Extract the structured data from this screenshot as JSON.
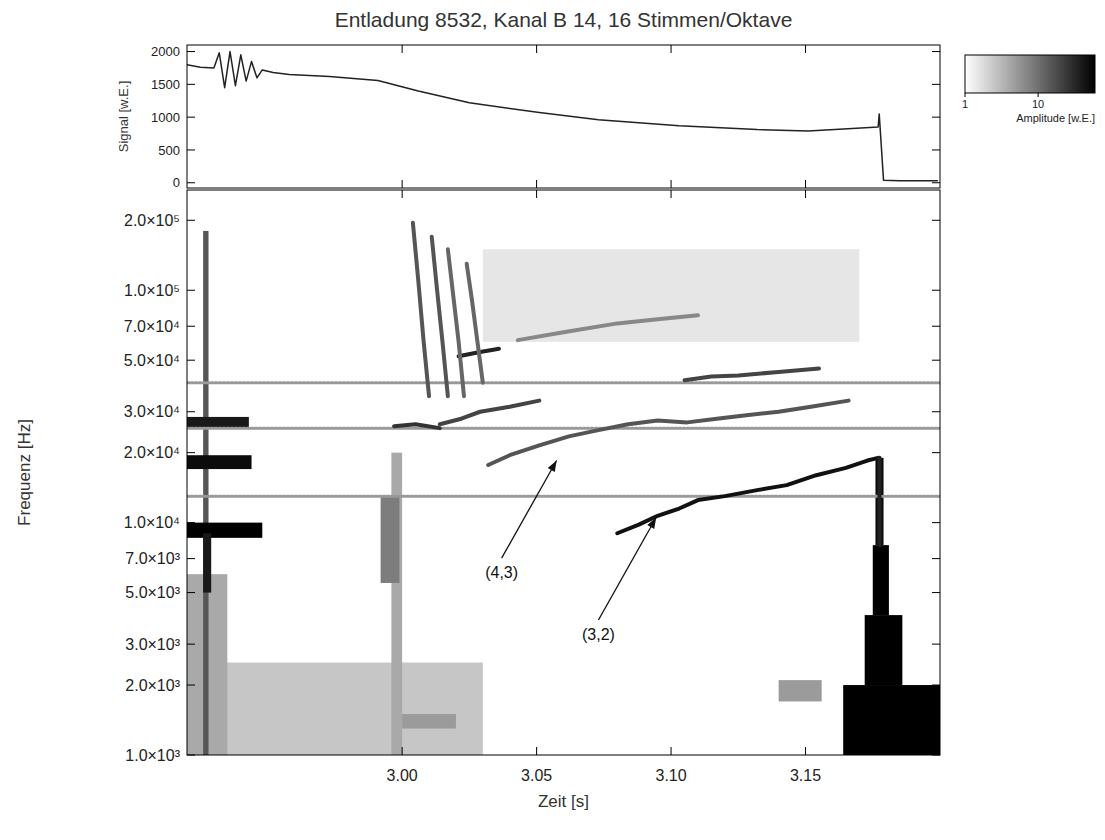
{
  "chart_data": [
    {
      "type": "line",
      "title": "Entladung 8532, Kanal B 14, 16 Stimmen/Oktave",
      "ylabel": "Signal [w.E.]",
      "xlim": [
        2.92,
        3.2
      ],
      "xticks": [
        {
          "value": 3,
          "label": "3.00"
        },
        3.05,
        {
          "value": 3.1,
          "label": "3.10"
        },
        3.15
      ],
      "ylim": [
        -80,
        2100
      ],
      "yticks": [
        0,
        500,
        1000,
        1500,
        2000
      ],
      "tick_labels": "y",
      "x": [
        2.92,
        2.925,
        2.93,
        2.932,
        2.934,
        2.936,
        2.938,
        2.94,
        2.942,
        2.944,
        2.946,
        2.948,
        2.952,
        2.958,
        2.973,
        2.991,
        3.006,
        3.025,
        3.051,
        3.073,
        3.103,
        3.132,
        3.151,
        3.169,
        3.177,
        3.1774,
        3.179,
        3.185,
        3.199
      ],
      "series": [
        {
          "color": "#222222",
          "values": [
            1800,
            1760,
            1750,
            1980,
            1450,
            2000,
            1480,
            1950,
            1550,
            1850,
            1600,
            1720,
            1680,
            1650,
            1620,
            1560,
            1400,
            1220,
            1070,
            960,
            870,
            810,
            790,
            830,
            850,
            1050,
            40,
            30,
            30
          ]
        }
      ]
    },
    {
      "type": "spectrogram",
      "xlabel": "Zeit [s]",
      "ylabel": "Frequenz [Hz]",
      "log": "y",
      "xlim": [
        2.92,
        3.2
      ],
      "xticks": [
        {
          "value": 3,
          "label": "3.00"
        },
        3.05,
        {
          "value": 3.1,
          "label": "3.10"
        },
        3.15
      ],
      "ylim": [
        1000,
        270000
      ],
      "yticks": [
        {
          "value": 1000,
          "label": "1.0×10³"
        },
        {
          "value": 2000,
          "label": "2.0×10³"
        },
        {
          "value": 3000,
          "label": "3.0×10³"
        },
        {
          "value": 5000,
          "label": "5.0×10³"
        },
        {
          "value": 7000,
          "label": "7.0×10³"
        },
        {
          "value": 10000,
          "label": "1.0×10⁴"
        },
        {
          "value": 20000,
          "label": "2.0×10⁴"
        },
        {
          "value": 30000,
          "label": "3.0×10⁴"
        },
        {
          "value": 50000,
          "label": "5.0×10⁴"
        },
        {
          "value": 70000,
          "label": "7.0×10⁴"
        },
        {
          "value": 100000,
          "label": "1.0×10⁵"
        },
        {
          "value": 200000,
          "label": "2.0×10⁵"
        }
      ],
      "colorbar": {
        "range": [
          1,
          60
        ],
        "ticks": [
          1,
          10
        ],
        "label": "Amplitude [w.E.]",
        "log": true
      },
      "cells": [
        {
          "x": [
            2.92,
            3.03
          ],
          "y": [
            1000,
            2500
          ],
          "value": 2.5
        },
        {
          "x": [
            2.92,
            2.935
          ],
          "y": [
            1000,
            6000
          ],
          "value": 4
        },
        {
          "x": [
            3.03,
            3.17
          ],
          "y": [
            60000,
            150000
          ],
          "value": 1.5
        },
        {
          "x": [
            2.996,
            3.0
          ],
          "y": [
            1000,
            20000
          ],
          "value": 4
        },
        {
          "x": [
            2.992,
            2.999
          ],
          "y": [
            5500,
            13000
          ],
          "value": 8
        },
        {
          "x": [
            3.0,
            3.02
          ],
          "y": [
            1300,
            1500
          ],
          "value": 5
        },
        {
          "x": [
            3.14,
            3.156
          ],
          "y": [
            1700,
            2100
          ],
          "value": 5
        },
        {
          "x": [
            2.926,
            2.928
          ],
          "y": [
            1000,
            180000
          ],
          "value": 15
        },
        {
          "x": [
            2.92,
            2.948
          ],
          "y": [
            8600,
            10000
          ],
          "value": 60
        },
        {
          "x": [
            2.92,
            2.944
          ],
          "y": [
            17000,
            19500
          ],
          "value": 50
        },
        {
          "x": [
            2.92,
            2.943
          ],
          "y": [
            25500,
            28500
          ],
          "value": 40
        },
        {
          "x": [
            2.926,
            2.929
          ],
          "y": [
            5000,
            9000
          ],
          "value": 40
        },
        {
          "x": [
            3.164,
            3.2
          ],
          "y": [
            1000,
            2000
          ],
          "value": 60
        },
        {
          "x": [
            3.172,
            3.186
          ],
          "y": [
            2000,
            4000
          ],
          "value": 60
        },
        {
          "x": [
            3.175,
            3.181
          ],
          "y": [
            4000,
            8000
          ],
          "value": 60
        },
        {
          "x": [
            3.176,
            3.179
          ],
          "y": [
            8000,
            19000
          ],
          "value": 50
        }
      ],
      "series": [
        {
          "color": "#999999",
          "line_style": "dotted",
          "x": [
            2.92,
            3.2
          ],
          "values": [
            40000,
            40000
          ]
        },
        {
          "color": "#999999",
          "line_style": "dotted",
          "x": [
            2.92,
            3.2
          ],
          "values": [
            25500,
            25500
          ]
        },
        {
          "color": "#999999",
          "line_style": "dotted",
          "x": [
            2.92,
            3.2
          ],
          "values": [
            13000,
            13000
          ]
        },
        {
          "color": "#111111",
          "x": [
            3.08,
            3.088,
            3.095,
            3.103,
            3.11,
            3.12,
            3.132,
            3.143,
            3.154,
            3.165,
            3.173,
            3.177
          ],
          "values": [
            9000,
            9800,
            10700,
            11500,
            12500,
            13000,
            13800,
            14500,
            16000,
            17200,
            18500,
            19000
          ]
        },
        {
          "color": "#222222",
          "x": [
            3.1775,
            3.1775
          ],
          "values": [
            19000,
            8000
          ]
        },
        {
          "color": "#555555",
          "x": [
            3.032,
            3.04,
            3.051,
            3.062,
            3.073,
            3.084,
            3.095,
            3.106,
            3.117,
            3.128,
            3.14,
            3.152,
            3.166
          ],
          "values": [
            17700,
            19500,
            21500,
            23500,
            25000,
            26500,
            27500,
            27000,
            28000,
            29000,
            30000,
            31500,
            33500
          ]
        },
        {
          "color": "#333333",
          "x": [
            2.997,
            3.005,
            3.014
          ],
          "values": [
            26000,
            26500,
            25500
          ]
        },
        {
          "color": "#444444",
          "x": [
            3.014,
            3.022,
            3.029,
            3.04,
            3.051
          ],
          "values": [
            26500,
            28000,
            30000,
            31500,
            33500
          ]
        },
        {
          "color": "#222222",
          "x": [
            3.021,
            3.028,
            3.036
          ],
          "values": [
            52000,
            54000,
            56000
          ]
        },
        {
          "color": "#888888",
          "x": [
            3.043,
            3.06,
            3.08,
            3.095,
            3.11
          ],
          "values": [
            61000,
            66000,
            72000,
            75000,
            78000
          ]
        },
        {
          "color": "#444444",
          "x": [
            3.105,
            3.115,
            3.125,
            3.14,
            3.155
          ],
          "values": [
            41000,
            42500,
            43000,
            44500,
            46000
          ]
        },
        {
          "color": "#555555",
          "x": [
            3.004,
            3.006,
            3.008,
            3.01
          ],
          "values": [
            195000,
            110000,
            60000,
            35000
          ]
        },
        {
          "color": "#555555",
          "x": [
            3.011,
            3.013,
            3.015,
            3.017
          ],
          "values": [
            170000,
            100000,
            60000,
            35000
          ]
        },
        {
          "color": "#666666",
          "x": [
            3.017,
            3.019,
            3.021,
            3.023
          ],
          "values": [
            150000,
            95000,
            60000,
            35000
          ]
        },
        {
          "color": "#666666",
          "x": [
            3.024,
            3.026,
            3.028,
            3.03
          ],
          "values": [
            130000,
            90000,
            60000,
            40000
          ]
        }
      ],
      "annotations": [
        {
          "text": "(4,3)",
          "x": 3.037,
          "y": 5770,
          "arrow_x": 3.058,
          "arrow_y": 19000
        },
        {
          "text": "(3,2)",
          "x": 3.073,
          "y": 3125,
          "arrow_x": 3.095,
          "arrow_y": 10800
        }
      ]
    }
  ]
}
